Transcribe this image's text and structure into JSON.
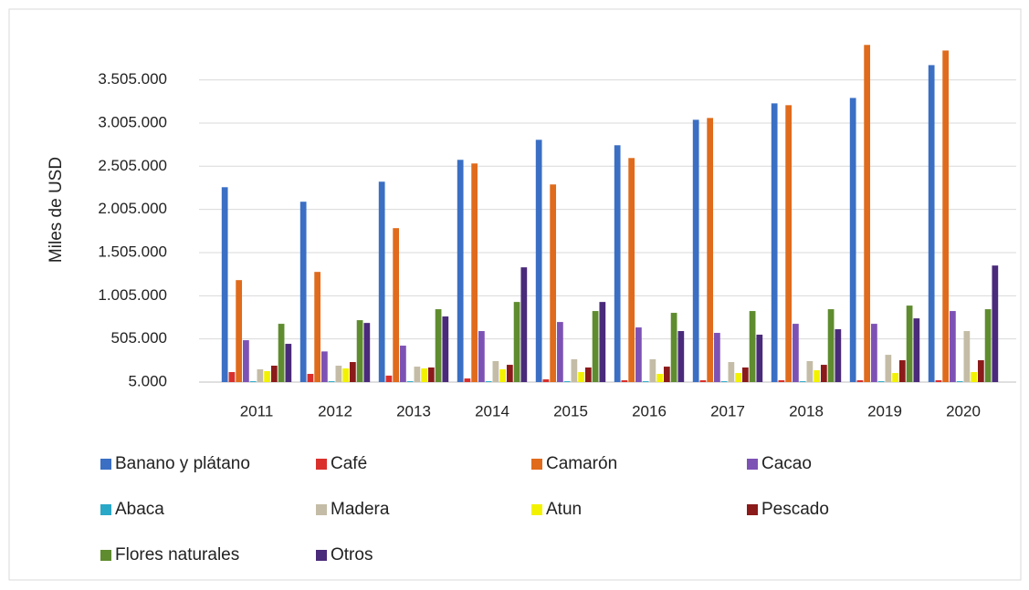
{
  "chart_data": {
    "type": "bar",
    "y_label": "Miles de USD",
    "categories": [
      "2011",
      "2012",
      "2013",
      "2014",
      "2015",
      "2016",
      "2017",
      "2018",
      "2019",
      "2020"
    ],
    "series": [
      {
        "name": "Banano y plátano",
        "color": "#3a6fc4",
        "values": [
          2262000,
          2094000,
          2326000,
          2579000,
          2811000,
          2748000,
          3043000,
          3233000,
          3296000,
          3676000
        ]
      },
      {
        "name": "Café",
        "color": "#d9302c",
        "values": [
          121000,
          100000,
          80000,
          47000,
          37000,
          26000,
          26000,
          26000,
          26000,
          26000
        ]
      },
      {
        "name": "Camarón",
        "color": "#e06b1c",
        "values": [
          1186000,
          1281000,
          1788000,
          2537000,
          2294000,
          2600000,
          3064000,
          3212000,
          3910000,
          3845000
        ]
      },
      {
        "name": "Cacao",
        "color": "#7d52b5",
        "values": [
          490000,
          360000,
          427000,
          596000,
          701000,
          638000,
          575000,
          680000,
          680000,
          828000
        ]
      },
      {
        "name": "Abaca",
        "color": "#2aa8c8",
        "values": [
          15000,
          15000,
          15000,
          15000,
          15000,
          15000,
          15000,
          15000,
          15000,
          15000
        ]
      },
      {
        "name": "Madera",
        "color": "#c4bca6",
        "values": [
          153000,
          195000,
          184000,
          248000,
          269000,
          269000,
          237000,
          248000,
          321000,
          596000
        ]
      },
      {
        "name": "Atun",
        "color": "#f2f200",
        "values": [
          132000,
          163000,
          163000,
          153000,
          121000,
          100000,
          110000,
          142000,
          110000,
          121000
        ]
      },
      {
        "name": "Pescado",
        "color": "#8b1a1a",
        "values": [
          195000,
          237000,
          174000,
          205000,
          174000,
          184000,
          174000,
          205000,
          258000,
          258000
        ]
      },
      {
        "name": "Flores naturales",
        "color": "#5f8c2e",
        "values": [
          680000,
          722000,
          849000,
          933000,
          828000,
          807000,
          828000,
          849000,
          891000,
          849000
        ]
      },
      {
        "name": "Otros",
        "color": "#4a2a7a",
        "values": [
          448000,
          690000,
          765000,
          1334000,
          933000,
          596000,
          554000,
          617000,
          743000,
          1355000
        ]
      }
    ],
    "ylim": [
      5000,
      3955000
    ],
    "yticks": [
      {
        "value": 5000,
        "label": "5.000"
      },
      {
        "value": 505000,
        "label": "505.000"
      },
      {
        "value": 1005000,
        "label": "1.005.000"
      },
      {
        "value": 1505000,
        "label": "1.505.000"
      },
      {
        "value": 2005000,
        "label": "2.005.000"
      },
      {
        "value": 2505000,
        "label": "2.505.000"
      },
      {
        "value": 3005000,
        "label": "3.005.000"
      },
      {
        "value": 3505000,
        "label": "3.505.000"
      }
    ],
    "grid": true,
    "legend": "bottom"
  }
}
